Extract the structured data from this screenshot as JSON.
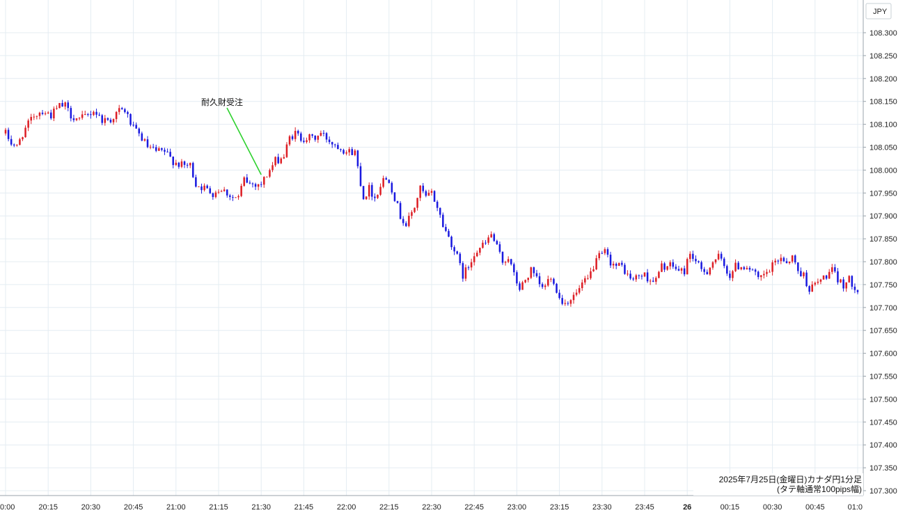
{
  "chart_data": {
    "type": "candlestick",
    "currency_label": "JPY",
    "caption_line1": "2025年7月25日(金曜日)カナダ円1分足",
    "caption_line2": "(タテ軸通常100pips幅)",
    "annotation": "耐久財受注",
    "ylim": [
      107.28,
      108.335
    ],
    "y_ticks": [
      "108.300",
      "108.250",
      "108.200",
      "108.150",
      "108.100",
      "108.050",
      "108.000",
      "107.950",
      "107.900",
      "107.850",
      "107.800",
      "107.750",
      "107.700",
      "107.650",
      "107.600",
      "107.550",
      "107.500",
      "107.450",
      "107.400",
      "107.350",
      "107.300"
    ],
    "x_ticks": [
      {
        "label": "0:00",
        "minute": 0,
        "bold": false
      },
      {
        "label": "20:15",
        "minute": 15,
        "bold": false
      },
      {
        "label": "20:30",
        "minute": 30,
        "bold": false
      },
      {
        "label": "20:45",
        "minute": 45,
        "bold": false
      },
      {
        "label": "21:00",
        "minute": 60,
        "bold": false
      },
      {
        "label": "21:15",
        "minute": 75,
        "bold": false
      },
      {
        "label": "21:30",
        "minute": 90,
        "bold": false
      },
      {
        "label": "21:45",
        "minute": 105,
        "bold": false
      },
      {
        "label": "22:00",
        "minute": 120,
        "bold": false
      },
      {
        "label": "22:15",
        "minute": 135,
        "bold": false
      },
      {
        "label": "22:30",
        "minute": 150,
        "bold": false
      },
      {
        "label": "22:45",
        "minute": 165,
        "bold": false
      },
      {
        "label": "23:00",
        "minute": 180,
        "bold": false
      },
      {
        "label": "23:15",
        "minute": 195,
        "bold": false
      },
      {
        "label": "23:30",
        "minute": 210,
        "bold": false
      },
      {
        "label": "23:45",
        "minute": 225,
        "bold": false
      },
      {
        "label": "26",
        "minute": 240,
        "bold": true
      },
      {
        "label": "00:15",
        "minute": 255,
        "bold": false
      },
      {
        "label": "00:30",
        "minute": 270,
        "bold": false
      },
      {
        "label": "00:45",
        "minute": 285,
        "bold": false
      },
      {
        "label": "01:0",
        "minute": 300,
        "bold": false
      }
    ],
    "annotation_minute": 90,
    "annotation_price": 107.99,
    "colors": {
      "up": "#dd1f26",
      "down": "#1a1adf",
      "grid": "#e4ecf2",
      "annotation_line": "#2ed12e"
    },
    "close_path": [
      [
        0,
        108.08
      ],
      [
        2,
        108.06
      ],
      [
        4,
        108.05
      ],
      [
        6,
        108.08
      ],
      [
        8,
        108.1
      ],
      [
        10,
        108.12
      ],
      [
        13,
        108.13
      ],
      [
        16,
        108.12
      ],
      [
        19,
        108.14
      ],
      [
        21,
        108.14
      ],
      [
        23,
        108.12
      ],
      [
        26,
        108.11
      ],
      [
        29,
        108.12
      ],
      [
        31,
        108.13
      ],
      [
        34,
        108.11
      ],
      [
        37,
        108.11
      ],
      [
        40,
        108.13
      ],
      [
        42,
        108.13
      ],
      [
        45,
        108.09
      ],
      [
        48,
        108.07
      ],
      [
        50,
        108.05
      ],
      [
        53,
        108.04
      ],
      [
        56,
        108.04
      ],
      [
        59,
        108.02
      ],
      [
        62,
        108.01
      ],
      [
        65,
        108.01
      ],
      [
        67,
        107.97
      ],
      [
        70,
        107.96
      ],
      [
        73,
        107.95
      ],
      [
        76,
        107.96
      ],
      [
        78,
        107.95
      ],
      [
        80,
        107.94
      ],
      [
        82,
        107.94
      ],
      [
        84,
        107.98
      ],
      [
        86,
        107.97
      ],
      [
        88,
        107.97
      ],
      [
        90,
        107.97
      ],
      [
        92,
        107.99
      ],
      [
        95,
        108.02
      ],
      [
        98,
        108.03
      ],
      [
        100,
        108.07
      ],
      [
        102,
        108.08
      ],
      [
        104,
        108.07
      ],
      [
        107,
        108.07
      ],
      [
        109,
        108.07
      ],
      [
        111,
        108.08
      ],
      [
        113,
        108.07
      ],
      [
        115,
        108.06
      ],
      [
        118,
        108.05
      ],
      [
        120,
        108.04
      ],
      [
        123,
        108.04
      ],
      [
        126,
        107.94
      ],
      [
        128,
        107.96
      ],
      [
        130,
        107.94
      ],
      [
        133,
        107.98
      ],
      [
        135,
        107.98
      ],
      [
        137,
        107.94
      ],
      [
        139,
        107.9
      ],
      [
        141,
        107.88
      ],
      [
        144,
        107.92
      ],
      [
        146,
        107.96
      ],
      [
        148,
        107.94
      ],
      [
        150,
        107.95
      ],
      [
        152,
        107.92
      ],
      [
        154,
        107.88
      ],
      [
        157,
        107.84
      ],
      [
        159,
        107.81
      ],
      [
        161,
        107.77
      ],
      [
        163,
        107.79
      ],
      [
        165,
        107.82
      ],
      [
        167,
        107.83
      ],
      [
        169,
        107.84
      ],
      [
        171,
        107.86
      ],
      [
        173,
        107.83
      ],
      [
        175,
        107.8
      ],
      [
        177,
        107.81
      ],
      [
        179,
        107.77
      ],
      [
        181,
        107.74
      ],
      [
        183,
        107.76
      ],
      [
        185,
        107.78
      ],
      [
        187,
        107.76
      ],
      [
        189,
        107.74
      ],
      [
        191,
        107.76
      ],
      [
        193,
        107.76
      ],
      [
        195,
        107.72
      ],
      [
        197,
        107.71
      ],
      [
        199,
        107.72
      ],
      [
        201,
        107.73
      ],
      [
        203,
        107.75
      ],
      [
        205,
        107.76
      ],
      [
        207,
        107.79
      ],
      [
        209,
        107.81
      ],
      [
        211,
        107.82
      ],
      [
        213,
        107.8
      ],
      [
        215,
        107.79
      ],
      [
        217,
        107.79
      ],
      [
        219,
        107.77
      ],
      [
        221,
        107.76
      ],
      [
        223,
        107.77
      ],
      [
        225,
        107.77
      ],
      [
        227,
        107.76
      ],
      [
        229,
        107.76
      ],
      [
        231,
        107.79
      ],
      [
        233,
        107.79
      ],
      [
        235,
        107.79
      ],
      [
        237,
        107.78
      ],
      [
        239,
        107.78
      ],
      [
        241,
        107.82
      ],
      [
        243,
        107.8
      ],
      [
        245,
        107.78
      ],
      [
        247,
        107.78
      ],
      [
        249,
        107.8
      ],
      [
        251,
        107.81
      ],
      [
        253,
        107.79
      ],
      [
        255,
        107.77
      ],
      [
        257,
        107.79
      ],
      [
        259,
        107.79
      ],
      [
        261,
        107.79
      ],
      [
        263,
        107.78
      ],
      [
        265,
        107.76
      ],
      [
        267,
        107.77
      ],
      [
        269,
        107.78
      ],
      [
        271,
        107.8
      ],
      [
        273,
        107.81
      ],
      [
        275,
        107.8
      ],
      [
        277,
        107.81
      ],
      [
        279,
        107.78
      ],
      [
        281,
        107.77
      ],
      [
        283,
        107.74
      ],
      [
        285,
        107.75
      ],
      [
        287,
        107.76
      ],
      [
        289,
        107.77
      ],
      [
        291,
        107.78
      ],
      [
        293,
        107.76
      ],
      [
        295,
        107.75
      ],
      [
        297,
        107.76
      ],
      [
        300,
        107.74
      ]
    ]
  }
}
